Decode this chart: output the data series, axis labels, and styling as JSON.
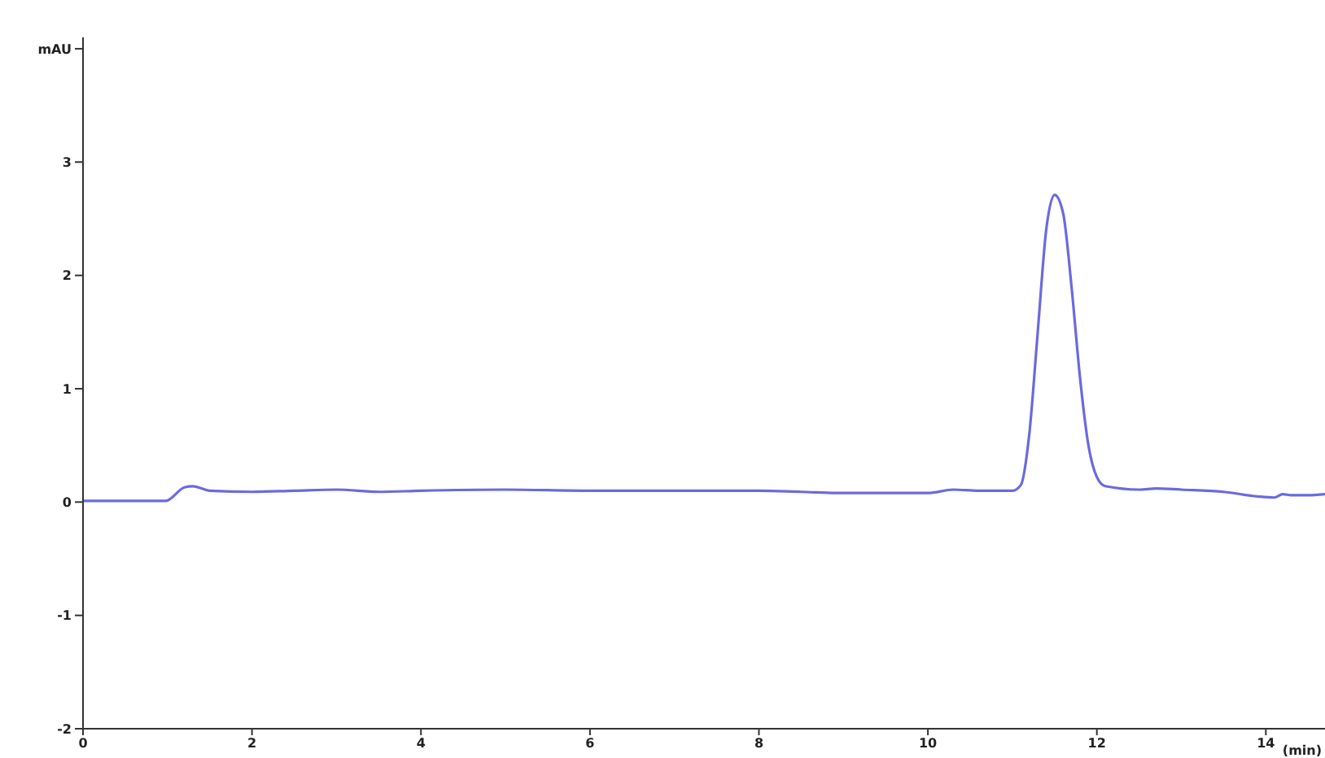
{
  "chart_data": {
    "type": "line",
    "xlabel": "(min)",
    "x": [
      0,
      0.98,
      1.2,
      1.3,
      1.5,
      2,
      2.5,
      3,
      3.5,
      4,
      5,
      6,
      7,
      8,
      8.5,
      9,
      10,
      10.3,
      10.6,
      11,
      11.1,
      11.2,
      11.3,
      11.4,
      11.5,
      11.6,
      11.7,
      11.8,
      11.9,
      12,
      12.1,
      12.5,
      12.7,
      13,
      13.5,
      13.9,
      14.1,
      14.2,
      14.3,
      14.5,
      14.7
    ],
    "series": [
      {
        "color": "#6a6ae0",
        "values": [
          0.01,
          0.01,
          0.13,
          0.14,
          0.1,
          0.09,
          0.1,
          0.11,
          0.09,
          0.1,
          0.11,
          0.1,
          0.1,
          0.1,
          0.09,
          0.08,
          0.08,
          0.11,
          0.1,
          0.1,
          0.15,
          0.6,
          1.5,
          2.4,
          2.71,
          2.55,
          1.9,
          1.1,
          0.5,
          0.22,
          0.14,
          0.11,
          0.12,
          0.11,
          0.09,
          0.05,
          0.04,
          0.07,
          0.06,
          0.06,
          0.07
        ]
      }
    ],
    "xlim": [
      0,
      14.7
    ],
    "xticks": [
      0,
      2,
      4,
      6,
      8,
      10,
      12,
      14
    ],
    "ylim": [
      -2,
      4.1
    ],
    "yticks": [
      -2,
      -1,
      0,
      1,
      2,
      3,
      {
        "value": 4,
        "label": "mAU"
      }
    ],
    "grid": false,
    "legend": false,
    "marker": "none",
    "line_style": "solid"
  }
}
